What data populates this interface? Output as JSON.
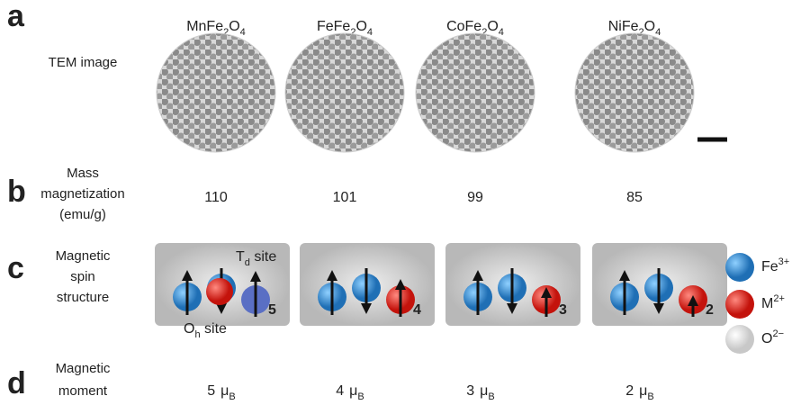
{
  "panel_letters": [
    "a",
    "b",
    "c",
    "d"
  ],
  "compounds": [
    [
      "MnFe",
      "2",
      "O",
      "4"
    ],
    [
      "FeFe",
      "2",
      "O",
      "4"
    ],
    [
      "CoFe",
      "2",
      "O",
      "4"
    ],
    [
      "NiFe",
      "2",
      "O",
      "4"
    ]
  ],
  "row_labels": {
    "tem": [
      "TEM image"
    ],
    "mass": [
      "Mass",
      "magnetization",
      "(emu/g)"
    ],
    "spin": [
      "Magnetic",
      "spin",
      "structure"
    ],
    "moment": [
      "Magnetic",
      "moment"
    ]
  },
  "mass_magnetization": [
    110,
    101,
    99,
    85
  ],
  "spin_numbers": [
    5,
    4,
    3,
    2
  ],
  "site_labels": {
    "td": [
      "T",
      "d",
      " site"
    ],
    "oh": [
      "O",
      "h",
      " site"
    ]
  },
  "legend": [
    [
      "Fe",
      "3+"
    ],
    [
      "M",
      "2+"
    ],
    [
      "O",
      "2−"
    ]
  ],
  "moments": [
    {
      "value": 5,
      "unit": "μ",
      "sub": "B"
    },
    {
      "value": 4,
      "unit": "μ",
      "sub": "B"
    },
    {
      "value": 3,
      "unit": "μ",
      "sub": "B"
    },
    {
      "value": 2,
      "unit": "μ",
      "sub": "B"
    }
  ]
}
